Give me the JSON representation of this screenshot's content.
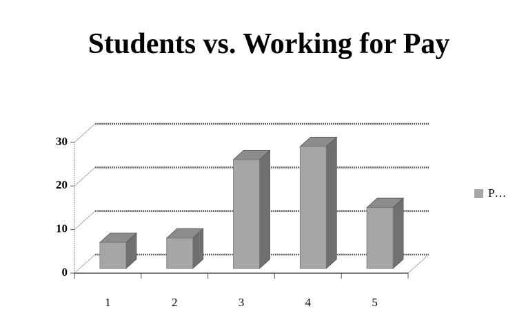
{
  "chart_data": {
    "type": "bar3d",
    "title": "Students vs. Working for Pay",
    "categories": [
      "1",
      "2",
      "3",
      "4",
      "5"
    ],
    "series": [
      {
        "name": "P…",
        "color": "#a6a6a6",
        "values": [
          6,
          7,
          25,
          28,
          14
        ]
      }
    ],
    "ylim": [
      0,
      30
    ],
    "yticks": [
      0,
      10,
      20,
      30
    ],
    "grid": true,
    "legend": "right"
  }
}
